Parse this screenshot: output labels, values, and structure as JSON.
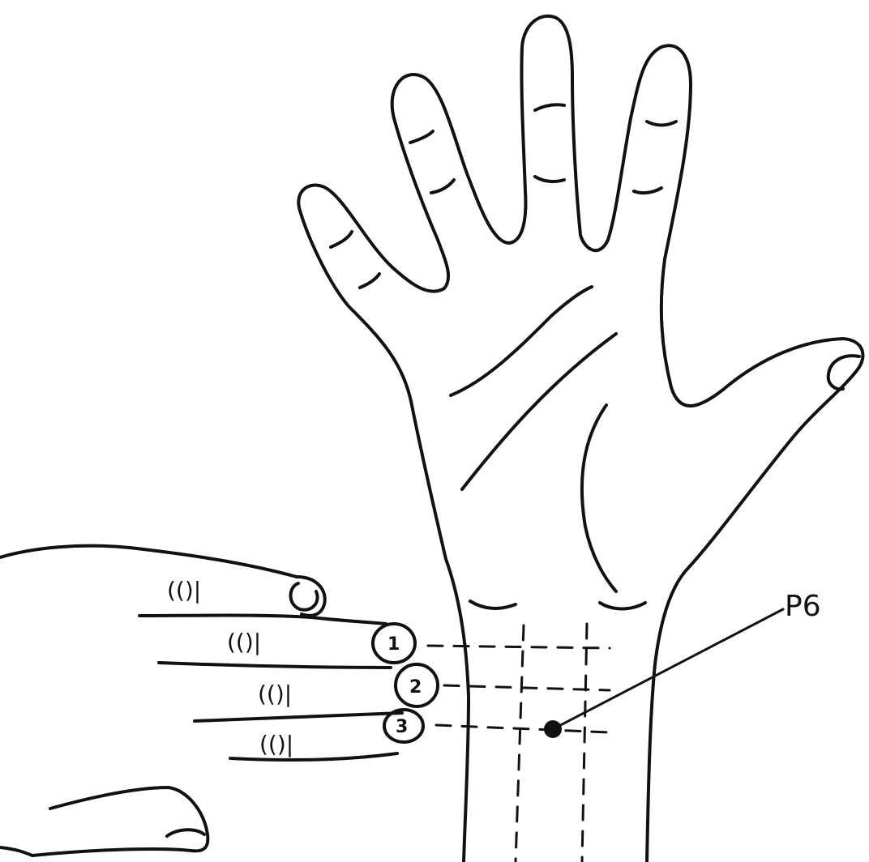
{
  "diagram": {
    "point_label": "P6",
    "finger_numbers": [
      "1",
      "2",
      "3"
    ],
    "knuckle_marks": [
      "(()|",
      "(()|",
      "(()|",
      "(()|"
    ]
  }
}
